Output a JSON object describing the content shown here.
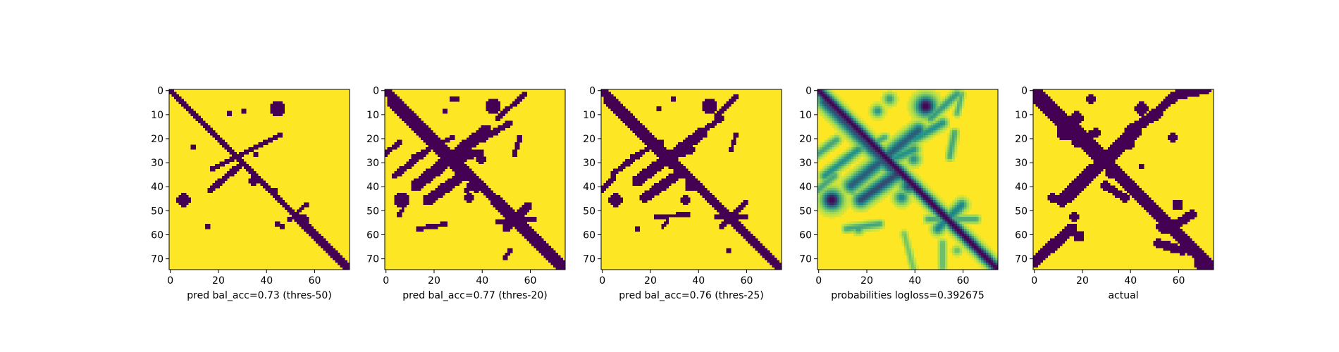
{
  "colors": {
    "low": "#440154",
    "mid": "#21918c",
    "high": "#fde725",
    "axis": "#000000"
  },
  "chart_data": [
    {
      "type": "heatmap",
      "kind": "binary",
      "xlabel": "pred bal_acc=0.73 (thres-50)",
      "xticks": [
        "0",
        "20",
        "40",
        "60"
      ],
      "yticks": [
        "0",
        "10",
        "20",
        "30",
        "40",
        "50",
        "60",
        "70"
      ],
      "xlim": [
        0,
        75
      ],
      "ylim": [
        75,
        0
      ],
      "grid": false,
      "structure": {
        "diagonal": [
          [
            0,
            0,
            1.0
          ],
          [
            75,
            75,
            1.6
          ]
        ],
        "strokes": [
          [
            [
              18,
              33
            ],
            [
              46,
              19
            ],
            1.0
          ],
          [
            [
              17,
              42
            ],
            [
              30,
              31
            ],
            1.2
          ],
          [
            [
              50,
              54
            ],
            [
              57,
              48
            ],
            0.8
          ],
          [
            [
              45,
              56
            ],
            [
              47,
              57
            ],
            0.8
          ]
        ],
        "blobs": [
          [
            45,
            8,
            3.2
          ],
          [
            25,
            10,
            1.5
          ],
          [
            31,
            9,
            1.0
          ],
          [
            6,
            46,
            2.6
          ],
          [
            36,
            27,
            1.2
          ],
          [
            35,
            38,
            1.6
          ],
          [
            10,
            24,
            1.0
          ],
          [
            16,
            57,
            1.0
          ],
          [
            56,
            54,
            2.0
          ],
          [
            44,
            42,
            1.0
          ]
        ]
      }
    },
    {
      "type": "heatmap",
      "kind": "binary",
      "xlabel": "pred bal_acc=0.77 (thres-20)",
      "xticks": [
        "0",
        "20",
        "40",
        "60"
      ],
      "yticks": [
        "0",
        "10",
        "20",
        "30",
        "40",
        "50",
        "60",
        "70"
      ],
      "xlim": [
        0,
        75
      ],
      "ylim": [
        75,
        0
      ],
      "grid": false,
      "structure": {
        "diagonal": [
          [
            0,
            0,
            2.0
          ],
          [
            75,
            75,
            2.2
          ]
        ],
        "strokes": [
          [
            [
              3,
              5
            ],
            [
              31,
              33
            ],
            2.3
          ],
          [
            [
              13,
              40
            ],
            [
              42,
              17
            ],
            2.4
          ],
          [
            [
              4,
              36
            ],
            [
              18,
              25
            ],
            1.3
          ],
          [
            [
              18,
              46
            ],
            [
              32,
              36
            ],
            2.2
          ],
          [
            [
              28,
              30
            ],
            [
              40,
              26
            ],
            1.5
          ],
          [
            [
              40,
              21
            ],
            [
              52,
              14
            ],
            1.2
          ],
          [
            [
              47,
              12
            ],
            [
              58,
              2
            ],
            1.0
          ],
          [
            [
              50,
              58
            ],
            [
              60,
              48
            ],
            1.5
          ],
          [
            [
              47,
              55
            ],
            [
              62,
              54
            ],
            1.0
          ],
          [
            [
              14,
              58
            ],
            [
              25,
              56
            ],
            0.9
          ],
          [
            [
              34,
              42
            ],
            [
              37,
              38
            ],
            1.2
          ],
          [
            [
              54,
              27
            ],
            [
              56,
              20
            ],
            1.0
          ],
          [
            [
              12,
              28
            ],
            [
              28,
              20
            ],
            0.9
          ],
          [
            [
              0,
              27
            ],
            [
              6,
              22
            ],
            1.0
          ],
          [
            [
              6,
              52
            ],
            [
              9,
              47
            ],
            0.8
          ],
          [
            [
              50,
              70
            ],
            [
              52,
              67
            ],
            0.8
          ]
        ],
        "blobs": [
          [
            45,
            7,
            3.3
          ],
          [
            7,
            46,
            3.2
          ],
          [
            33,
            35,
            3.0
          ],
          [
            38,
            40,
            2.6
          ],
          [
            35,
            45,
            2.0
          ],
          [
            40,
            29,
            2.0
          ],
          [
            25,
            9,
            1.5
          ],
          [
            30,
            4,
            1.5
          ],
          [
            36,
            26,
            1.2
          ],
          [
            28,
            4,
            1.0
          ]
        ]
      }
    },
    {
      "type": "heatmap",
      "kind": "binary",
      "xlabel": "pred bal_acc=0.76 (thres-25)",
      "xticks": [
        "0",
        "20",
        "40",
        "60"
      ],
      "yticks": [
        "0",
        "10",
        "20",
        "30",
        "40",
        "50",
        "60",
        "70"
      ],
      "xlim": [
        0,
        75
      ],
      "ylim": [
        75,
        0
      ],
      "grid": false,
      "structure": {
        "diagonal": [
          [
            0,
            0,
            1.8
          ],
          [
            75,
            75,
            2.1
          ]
        ],
        "strokes": [
          [
            [
              3,
              5
            ],
            [
              31,
              32
            ],
            2.1
          ],
          [
            [
              15,
              38
            ],
            [
              42,
              18
            ],
            2.2
          ],
          [
            [
              5,
              35
            ],
            [
              17,
              26
            ],
            1.1
          ],
          [
            [
              18,
              45
            ],
            [
              31,
              36
            ],
            2.0
          ],
          [
            [
              30,
              28
            ],
            [
              38,
              25
            ],
            1.3
          ],
          [
            [
              41,
              18
            ],
            [
              50,
              12
            ],
            1.0
          ],
          [
            [
              48,
              11
            ],
            [
              56,
              3
            ],
            0.8
          ],
          [
            [
              50,
              57
            ],
            [
              60,
              47
            ],
            1.3
          ],
          [
            [
              48,
              53
            ],
            [
              60,
              53
            ],
            0.9
          ],
          [
            [
              23,
              53
            ],
            [
              36,
              52
            ],
            0.9
          ],
          [
            [
              0,
              42
            ],
            [
              5,
              37
            ],
            0.8
          ],
          [
            [
              54,
              25
            ],
            [
              56,
              19
            ],
            0.8
          ],
          [
            [
              13,
              28
            ],
            [
              25,
              22
            ],
            0.8
          ],
          [
            [
              25,
              57
            ],
            [
              28,
              55
            ],
            0.7
          ]
        ],
        "blobs": [
          [
            45,
            7,
            3.0
          ],
          [
            6,
            46,
            2.8
          ],
          [
            33,
            35,
            2.3
          ],
          [
            37,
            40,
            2.3
          ],
          [
            35,
            46,
            1.6
          ],
          [
            15,
            58,
            1.4
          ],
          [
            24,
            8,
            1.3
          ],
          [
            30,
            4,
            1.2
          ],
          [
            36,
            26,
            1.0
          ],
          [
            53,
            67,
            0.8
          ]
        ]
      }
    },
    {
      "type": "heatmap",
      "kind": "probability",
      "xlabel": "probabilities logloss=0.392675",
      "xticks": [
        "0",
        "20",
        "40",
        "60"
      ],
      "yticks": [
        "0",
        "10",
        "20",
        "30",
        "40",
        "50",
        "60",
        "70"
      ],
      "xlim": [
        0,
        75
      ],
      "ylim": [
        75,
        0
      ],
      "grid": false,
      "structure": {
        "diagonal": [
          [
            0,
            0,
            1.8
          ],
          [
            75,
            75,
            1.8
          ]
        ],
        "strokes": [
          [
            [
              3,
              5
            ],
            [
              31,
              33
            ],
            2.4,
            0.8
          ],
          [
            [
              14,
              40
            ],
            [
              42,
              17
            ],
            2.4,
            0.75
          ],
          [
            [
              3,
              36
            ],
            [
              17,
              25
            ],
            1.6,
            0.6
          ],
          [
            [
              18,
              46
            ],
            [
              32,
              36
            ],
            2.4,
            0.8
          ],
          [
            [
              27,
              31
            ],
            [
              40,
              25
            ],
            1.8,
            0.6
          ],
          [
            [
              40,
              21
            ],
            [
              52,
              14
            ],
            1.6,
            0.6
          ],
          [
            [
              47,
              12
            ],
            [
              58,
              2
            ],
            1.4,
            0.55
          ],
          [
            [
              50,
              58
            ],
            [
              60,
              48
            ],
            1.8,
            0.65
          ],
          [
            [
              46,
              54
            ],
            [
              66,
              54
            ],
            1.2,
            0.5
          ],
          [
            [
              12,
              58
            ],
            [
              26,
              56
            ],
            1.2,
            0.5
          ],
          [
            [
              55,
              28
            ],
            [
              57,
              18
            ],
            1.2,
            0.5
          ],
          [
            [
              12,
              28
            ],
            [
              28,
              20
            ],
            1.2,
            0.5
          ],
          [
            [
              0,
              27
            ],
            [
              8,
              21
            ],
            1.4,
            0.5
          ],
          [
            [
              0,
              42
            ],
            [
              7,
              36
            ],
            1.4,
            0.5
          ],
          [
            [
              58,
              10
            ],
            [
              60,
              2
            ],
            1.0,
            0.45
          ],
          [
            [
              52,
              64
            ],
            [
              52,
              74
            ],
            1.2,
            0.4
          ],
          [
            [
              36,
              60
            ],
            [
              40,
              75
            ],
            1.0,
            0.35
          ]
        ],
        "blobs": [
          [
            45,
            7,
            3.3,
            1.0
          ],
          [
            6,
            46,
            3.2,
            1.0
          ],
          [
            33,
            35,
            3.0,
            0.85
          ],
          [
            38,
            40,
            2.7,
            0.8
          ],
          [
            35,
            45,
            2.2,
            0.65
          ],
          [
            40,
            29,
            2.0,
            0.6
          ],
          [
            25,
            9,
            1.8,
            0.6
          ],
          [
            30,
            4,
            1.8,
            0.55
          ],
          [
            36,
            26,
            1.6,
            0.5
          ],
          [
            17,
            58,
            1.6,
            0.55
          ],
          [
            58,
            67,
            1.4,
            0.4
          ],
          [
            15,
            43,
            1.4,
            0.4
          ]
        ]
      }
    },
    {
      "type": "heatmap",
      "kind": "binary",
      "xlabel": "actual",
      "xticks": [
        "0",
        "20",
        "40",
        "60"
      ],
      "yticks": [
        "0",
        "10",
        "20",
        "30",
        "40",
        "50",
        "60",
        "70"
      ],
      "xlim": [
        0,
        75
      ],
      "ylim": [
        75,
        0
      ],
      "grid": false,
      "structure": {
        "diagonal": [
          [
            0,
            0,
            2.4
          ],
          [
            75,
            75,
            2.8
          ]
        ],
        "strokes": [
          [
            [
              5,
              6
            ],
            [
              30,
              30
            ],
            3.2
          ],
          [
            [
              12,
              46
            ],
            [
              42,
              18
            ],
            2.8
          ],
          [
            [
              0,
              72
            ],
            [
              16,
              58
            ],
            2.3
          ],
          [
            [
              40,
              17
            ],
            [
              52,
              10
            ],
            2.0
          ],
          [
            [
              48,
              12
            ],
            [
              60,
              2
            ],
            1.8
          ],
          [
            [
              18,
              22
            ],
            [
              26,
              18
            ],
            1.8
          ],
          [
            [
              56,
              58
            ],
            [
              66,
              52
            ],
            1.8
          ],
          [
            [
              30,
              40
            ],
            [
              38,
              45
            ],
            1.6
          ],
          [
            [
              52,
              64
            ],
            [
              62,
              67
            ],
            1.8
          ],
          [
            [
              58,
              3
            ],
            [
              72,
              0
            ],
            1.8
          ]
        ],
        "blobs": [
          [
            3,
            4,
            3.2
          ],
          [
            13,
            18,
            3.5
          ],
          [
            33,
            34,
            3.3
          ],
          [
            45,
            8,
            2.8
          ],
          [
            60,
            48,
            2.5
          ],
          [
            18,
            12,
            2.6
          ],
          [
            27,
            27,
            3.0
          ],
          [
            46,
            46,
            2.8
          ],
          [
            54,
            57,
            2.6
          ],
          [
            66,
            67,
            2.4
          ],
          [
            70,
            72,
            3.2
          ],
          [
            40,
            23,
            2.0
          ],
          [
            58,
            20,
            1.6
          ],
          [
            19,
            61,
            2.2
          ],
          [
            8,
            45,
            2.0
          ],
          [
            17,
            53,
            2.0
          ],
          [
            45,
            32,
            1.4
          ],
          [
            24,
            4,
            1.8
          ]
        ]
      }
    }
  ]
}
